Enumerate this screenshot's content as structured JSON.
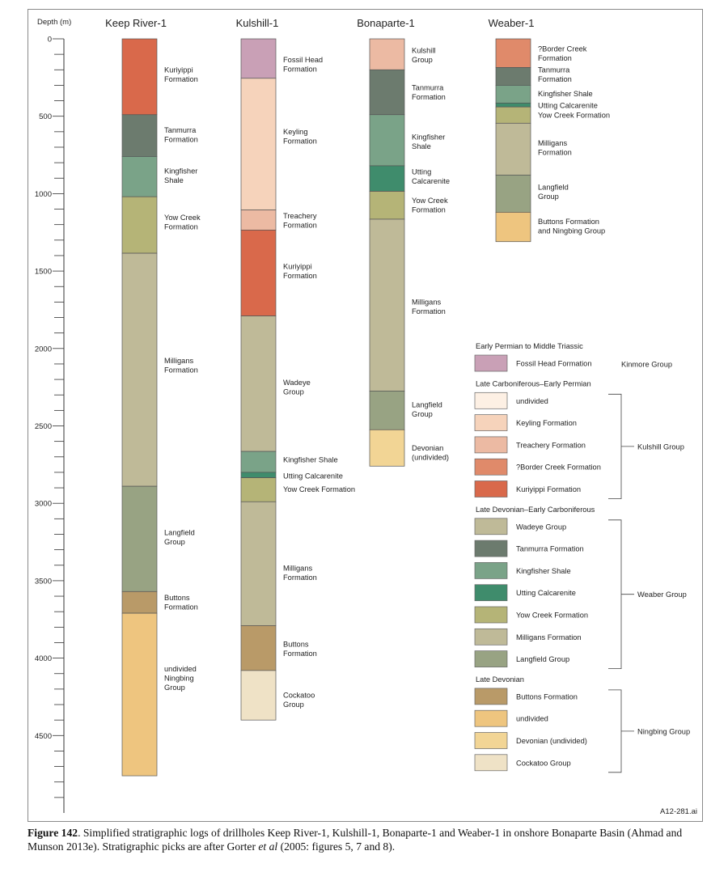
{
  "figure_id": "A12-281.ai",
  "depth_axis": {
    "label": "Depth (m)",
    "min": 0,
    "max": 5000,
    "major_ticks": [
      0,
      500,
      1000,
      1500,
      2000,
      2500,
      3000,
      3500,
      4000,
      4500
    ],
    "minor_step": 100
  },
  "colors": {
    "fossil_head": "#c9a0b6",
    "undivided_kulshill": "#fdf0e4",
    "keyling": "#f6d3bb",
    "treachery": "#ecbaa3",
    "border_creek": "#e08a6a",
    "kuriyippi": "#d9694b",
    "wadeye": "#bfba98",
    "tanmurra": "#6c7b6e",
    "kingfisher": "#7aa388",
    "utting": "#3f8c6c",
    "yow_creek": "#b5b477",
    "milligans": "#bfba98",
    "langfield": "#98a383",
    "buttons": "#b99a68",
    "ningbing_undivided": "#eec57f",
    "devonian_undivided": "#f2d595",
    "cockatoo": "#efe2c6"
  },
  "wells": [
    {
      "name": "Keep River-1",
      "units": [
        {
          "top": 0,
          "base": 490,
          "color": "kuriyippi",
          "label": "Kuriyippi\nFormation",
          "label_depth": 230
        },
        {
          "top": 490,
          "base": 760,
          "color": "tanmurra",
          "label": "Tanmurra\nFormation",
          "label_depth": 620
        },
        {
          "top": 760,
          "base": 1020,
          "color": "kingfisher",
          "label": "Kingfisher\nShale",
          "label_depth": 885
        },
        {
          "top": 1020,
          "base": 1385,
          "color": "yow_creek",
          "label": "Yow Creek\nFormation",
          "label_depth": 1185
        },
        {
          "top": 1385,
          "base": 2890,
          "color": "milligans",
          "label": "Milligans\nFormation",
          "label_depth": 2110
        },
        {
          "top": 2890,
          "base": 3570,
          "color": "langfield",
          "label": "Langfield\nGroup",
          "label_depth": 3220
        },
        {
          "top": 3570,
          "base": 3710,
          "color": "buttons",
          "label": "Buttons\nFormation",
          "label_depth": 3640
        },
        {
          "top": 3710,
          "base": 4760,
          "color": "ningbing_undivided",
          "label": "undivided\nNingbing\nGroup",
          "label_depth": 4130
        }
      ]
    },
    {
      "name": "Kulshill-1",
      "units": [
        {
          "top": 0,
          "base": 255,
          "color": "fossil_head",
          "label": "Fossil Head\nFormation",
          "label_depth": 165
        },
        {
          "top": 255,
          "base": 1105,
          "color": "keyling",
          "label": "Keyling\nFormation",
          "label_depth": 630
        },
        {
          "top": 1105,
          "base": 1235,
          "color": "treachery",
          "label": "Treachery\nFormation",
          "label_depth": 1175
        },
        {
          "top": 1235,
          "base": 1790,
          "color": "kuriyippi",
          "label": "Kuriyippi\nFormation",
          "label_depth": 1500
        },
        {
          "top": 1790,
          "base": 2665,
          "color": "wadeye",
          "label": "Wadeye\nGroup",
          "label_depth": 2250
        },
        {
          "top": 2665,
          "base": 2800,
          "color": "kingfisher",
          "label": "Kingfisher Shale",
          "label_depth": 2720
        },
        {
          "top": 2800,
          "base": 2835,
          "color": "utting",
          "label": "Utting Calcarenite",
          "label_depth": 2825
        },
        {
          "top": 2835,
          "base": 2990,
          "color": "yow_creek",
          "label": "Yow Creek Formation",
          "label_depth": 2910
        },
        {
          "top": 2990,
          "base": 3790,
          "color": "milligans",
          "label": "Milligans\nFormation",
          "label_depth": 3450
        },
        {
          "top": 3790,
          "base": 4080,
          "color": "buttons",
          "label": "Buttons\nFormation",
          "label_depth": 3940
        },
        {
          "top": 4080,
          "base": 4400,
          "color": "cockatoo",
          "label": "Cockatoo\nGroup",
          "label_depth": 4270
        }
      ]
    },
    {
      "name": "Bonaparte-1",
      "units": [
        {
          "top": 0,
          "base": 200,
          "color": "treachery",
          "label": "Kulshill\nGroup",
          "label_depth": 105
        },
        {
          "top": 200,
          "base": 490,
          "color": "tanmurra",
          "label": "Tanmurra\nFormation",
          "label_depth": 345
        },
        {
          "top": 490,
          "base": 820,
          "color": "kingfisher",
          "label": "Kingfisher\nShale",
          "label_depth": 665
        },
        {
          "top": 820,
          "base": 985,
          "color": "utting",
          "label": "Utting\nCalcarenite",
          "label_depth": 890
        },
        {
          "top": 985,
          "base": 1165,
          "color": "yow_creek",
          "label": "Yow Creek\nFormation",
          "label_depth": 1075
        },
        {
          "top": 1165,
          "base": 2275,
          "color": "milligans",
          "label": "Milligans\nFormation",
          "label_depth": 1730
        },
        {
          "top": 2275,
          "base": 2525,
          "color": "langfield",
          "label": "Langfield\nGroup",
          "label_depth": 2395
        },
        {
          "top": 2525,
          "base": 2760,
          "color": "devonian_undivided",
          "label": "Devonian\n(undivided)",
          "label_depth": 2675
        }
      ]
    },
    {
      "name": "Weaber-1",
      "units": [
        {
          "top": 0,
          "base": 185,
          "color": "border_creek",
          "label": "?Border Creek\nFormation",
          "label_depth": 95
        },
        {
          "top": 185,
          "base": 300,
          "color": "tanmurra",
          "label": "Tanmurra\nFormation",
          "label_depth": 230
        },
        {
          "top": 300,
          "base": 415,
          "color": "kingfisher",
          "label": "Kingfisher Shale",
          "label_depth": 355
        },
        {
          "top": 415,
          "base": 440,
          "color": "utting",
          "label": "Utting Calcarenite",
          "label_depth": 430
        },
        {
          "top": 440,
          "base": 545,
          "color": "yow_creek",
          "label": "Yow Creek Formation",
          "label_depth": 495
        },
        {
          "top": 545,
          "base": 880,
          "color": "milligans",
          "label": "Milligans\nFormation",
          "label_depth": 705
        },
        {
          "top": 880,
          "base": 1120,
          "color": "langfield",
          "label": "Langfield\nGroup",
          "label_depth": 990
        },
        {
          "top": 1120,
          "base": 1310,
          "color": "ningbing_undivided",
          "label": "Buttons Formation\nand Ningbing Group",
          "label_depth": 1210
        }
      ]
    }
  ],
  "legend": {
    "sections": [
      {
        "title": "Early Permian to Middle Triassic",
        "items": [
          {
            "label": "Fossil Head Formation",
            "color": "fossil_head",
            "group": "Kinmore Group"
          }
        ]
      },
      {
        "title": "Late Carboniferous–Early Permian",
        "items": [
          {
            "label": "undivided",
            "color": "undivided_kulshill"
          },
          {
            "label": "Keyling Formation",
            "color": "keyling"
          },
          {
            "label": "Treachery Formation",
            "color": "treachery"
          },
          {
            "label": "?Border Creek Formation",
            "color": "border_creek"
          },
          {
            "label": "Kuriyippi Formation",
            "color": "kuriyippi"
          }
        ],
        "bracket": "Kulshill Group"
      },
      {
        "title": "Late Devonian–Early Carboniferous",
        "items": [
          {
            "label": "Wadeye Group",
            "color": "wadeye"
          },
          {
            "label": "Tanmurra Formation",
            "color": "tanmurra"
          },
          {
            "label": "Kingfisher Shale",
            "color": "kingfisher"
          },
          {
            "label": "Utting Calcarenite",
            "color": "utting"
          },
          {
            "label": "Yow Creek Formation",
            "color": "yow_creek"
          },
          {
            "label": "Milligans Formation",
            "color": "milligans"
          },
          {
            "label": "Langfield Group",
            "color": "langfield"
          }
        ],
        "bracket": "Weaber Group"
      },
      {
        "title": "Late Devonian",
        "items": [
          {
            "label": "Buttons Formation",
            "color": "buttons"
          },
          {
            "label": "undivided",
            "color": "ningbing_undivided"
          },
          {
            "label": "Devonian (undivided)",
            "color": "devonian_undivided"
          },
          {
            "label": "Cockatoo Group",
            "color": "cockatoo"
          }
        ],
        "bracket": "Ningbing Group"
      }
    ]
  },
  "caption": {
    "label": "Figure 142",
    "text_part1": ". Simplified stratigraphic logs of drillholes Keep River-1, Kulshill-1, Bonaparte-1 and Weaber-1 in onshore Bonaparte Basin (Ahmad and Munson 2013e). Stratigraphic picks are after Gorter ",
    "italic": "et al",
    "text_part2": " (2005: figures 5, 7 and 8)."
  }
}
